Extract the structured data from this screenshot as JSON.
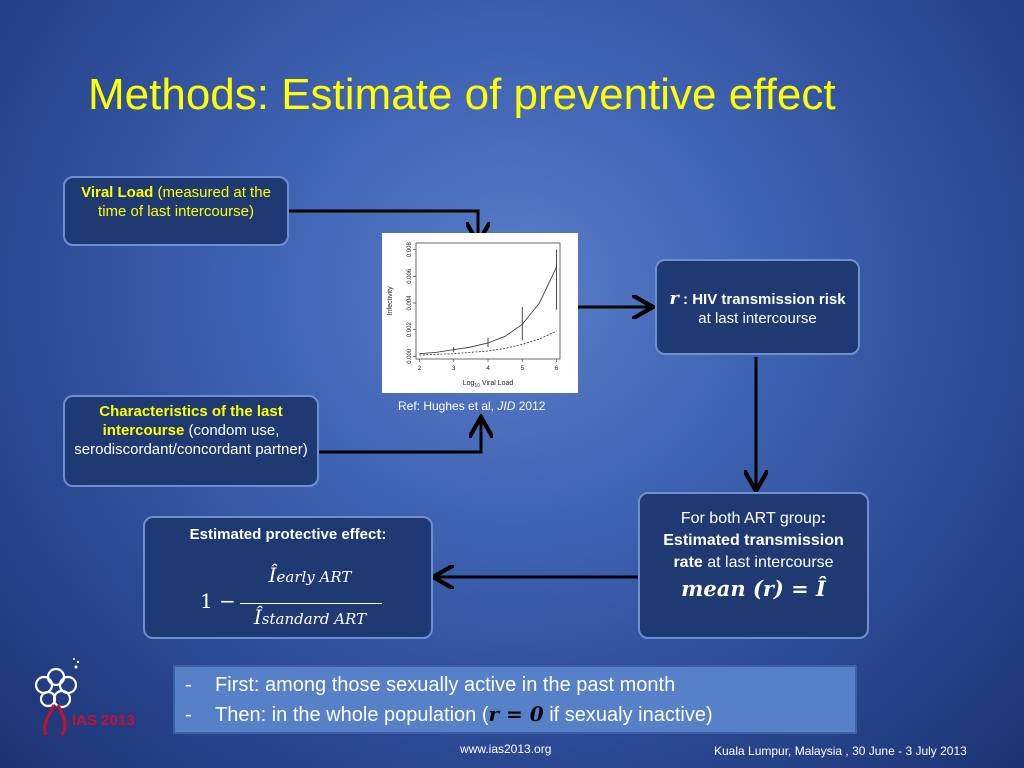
{
  "slide": {
    "title": "Methods: Estimate of preventive effect",
    "viral_load_box": {
      "bold": "Viral Load",
      "rest": " (measured at the time of last intercourse)"
    },
    "characteristics_box": {
      "bold": "Characteristics of the last intercourse",
      "rest": " (condom use, serodiscordant/concordant partner)"
    },
    "r_box": {
      "symbol": "r",
      "bold": " : HIV transmission risk",
      "rest": " at last intercourse"
    },
    "art_box": {
      "line1": "For both ART group",
      "colon": ":",
      "bold": "Estimated transmission rate",
      "rest": " at last intercourse",
      "formula": "mean (r) = Î"
    },
    "effect_box": {
      "title": "Estimated protective effect:",
      "one_minus": "1 −",
      "numerator_symbol": "Î",
      "numerator_sub": "early ART",
      "denominator_symbol": "Î",
      "denominator_sub": "standard ART"
    },
    "reference": {
      "prefix": "Ref: Hughes et al, ",
      "journal": "JID",
      "year": " 2012"
    },
    "bullets": {
      "item1": "First: among those sexually active in the past month",
      "item2_prefix": "Then: in the whole population (",
      "item2_formula": "r = 0",
      "item2_suffix": " if sexualy inactive)",
      "dash": "-"
    },
    "footer_url": "www.ias2013.org",
    "footer_event": "Kuala Lumpur, Malaysia , 30 June - 3 July 2013",
    "logo_text": "IAS 2013"
  },
  "chart_data": {
    "type": "line",
    "xlabel": "Log10 Viral Load",
    "ylabel": "Infectivity",
    "xticks": [
      "2",
      "3",
      "4",
      "5",
      "6"
    ],
    "yticks": [
      "0.000",
      "0.002",
      "0.004",
      "0.006",
      "0.008"
    ],
    "xlim": [
      1.9,
      6.1
    ],
    "ylim": [
      -0.0002,
      0.0085
    ],
    "series": [
      {
        "style": "solid",
        "x": [
          2,
          2.5,
          3,
          3.5,
          4,
          4.5,
          5,
          5.5,
          6
        ],
        "y": [
          0.0002,
          0.0003,
          0.0005,
          0.0007,
          0.001,
          0.0015,
          0.0024,
          0.004,
          0.0067
        ]
      },
      {
        "style": "dashed",
        "x": [
          2,
          2.5,
          3,
          3.5,
          4,
          4.5,
          5,
          5.5,
          6
        ],
        "y": [
          0.0001,
          0.00015,
          0.0002,
          0.0003,
          0.0004,
          0.0006,
          0.0009,
          0.0013,
          0.0019
        ]
      }
    ],
    "error_bars": [
      {
        "x": 3,
        "low": 0.0003,
        "high": 0.0007
      },
      {
        "x": 4,
        "low": 0.0007,
        "high": 0.0014
      },
      {
        "x": 5,
        "low": 0.0012,
        "high": 0.0037
      },
      {
        "x": 6,
        "low": 0.0035,
        "high": 0.008
      }
    ]
  }
}
